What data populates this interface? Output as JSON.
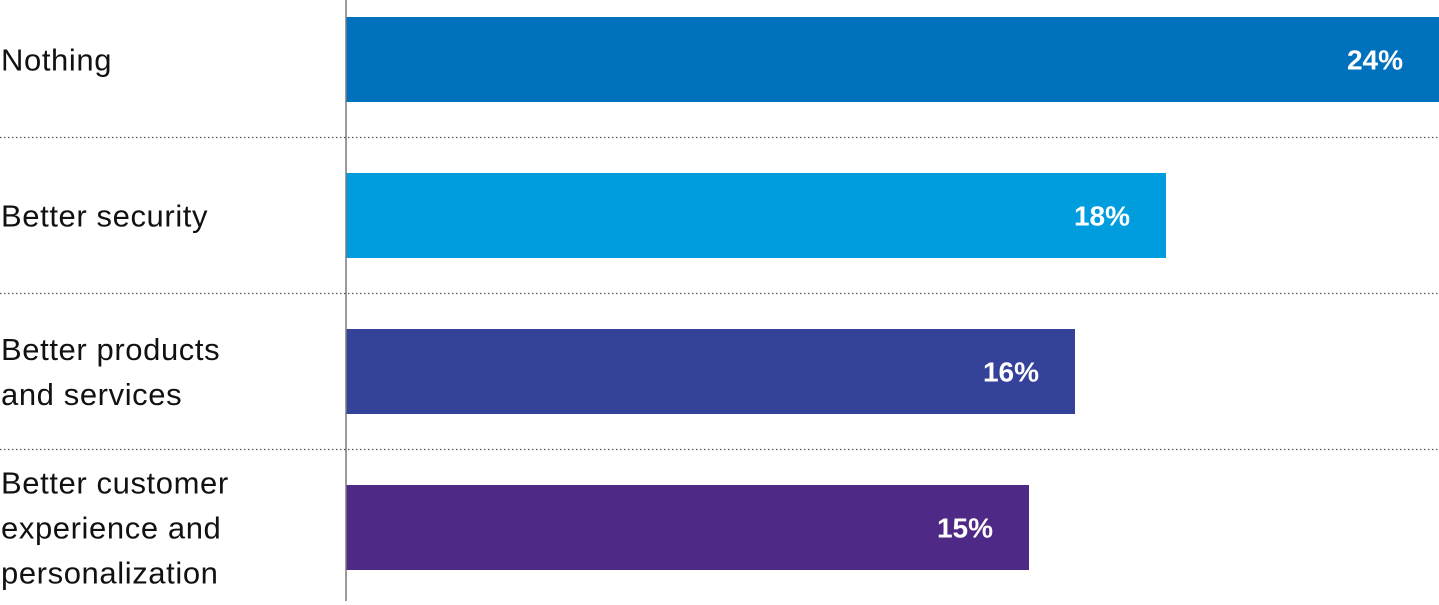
{
  "chart_data": {
    "type": "bar",
    "orientation": "horizontal",
    "categories": [
      [
        "Nothing"
      ],
      [
        "Better security"
      ],
      [
        "Better products",
        "and services"
      ],
      [
        "Better customer",
        "experience and",
        "personalization"
      ]
    ],
    "values": [
      24,
      18,
      16,
      15
    ],
    "value_labels": [
      "24%",
      "18%",
      "16%",
      "15%"
    ],
    "unit": "%",
    "colors": [
      "#0071BC",
      "#009DDE",
      "#35429A",
      "#4F2986"
    ],
    "title": "",
    "xlabel": "",
    "ylabel": "",
    "grid": false,
    "row_separators": "dotted",
    "legend": "none"
  }
}
